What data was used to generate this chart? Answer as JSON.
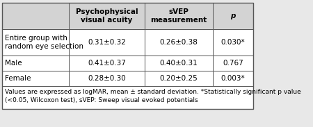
{
  "col_headers": [
    "Psychophysical\nvisual acuity",
    "sVEP\nmeasurement",
    "p"
  ],
  "row_labels": [
    "Entire group with\nrandom eye selection",
    "Male",
    "Female"
  ],
  "cell_data": [
    [
      "0.31±0.32",
      "0.26±0.38",
      "0.030*"
    ],
    [
      "0.41±0.37",
      "0.40±0.31",
      "0.767"
    ],
    [
      "0.28±0.30",
      "0.20±0.25",
      "0.003*"
    ]
  ],
  "footnote": "Values are expressed as logMAR, mean ± standard deviation. *Statistically significant p value\n(<0.05, Wilcoxon test), sVEP: Sweep visual evoked potentials",
  "header_bg": "#d3d3d3",
  "cell_bg": "#ffffff",
  "border_color": "#555555",
  "text_color": "#000000",
  "header_fontsize": 7.5,
  "cell_fontsize": 7.5,
  "footnote_fontsize": 6.5,
  "fig_bg": "#e8e8e8"
}
